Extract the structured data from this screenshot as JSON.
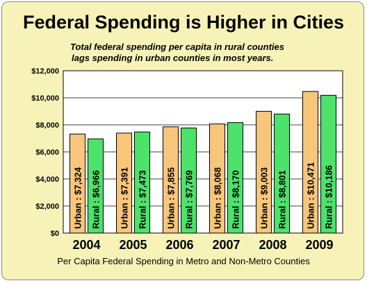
{
  "title": "Federal Spending is Higher in Cities",
  "subtitle_line1": "Total federal spending per capita in rural counties",
  "subtitle_line2": "lags spending in urban counties in most years.",
  "xlabel": "Per Capita Federal Spending in Metro and Non-Metro Counties",
  "colors": {
    "urban": "#f7c67a",
    "rural": "#4de26a",
    "background": "#f7f3b8",
    "plot": "#ffffff"
  },
  "chart_data": {
    "type": "bar",
    "title": "Federal Spending is Higher in Cities",
    "xlabel": "Per Capita Federal Spending in Metro and Non-Metro Counties",
    "ylabel": "",
    "ylim": [
      0,
      12000
    ],
    "yticks": [
      "$0",
      "$2,000",
      "$4,000",
      "$6,000",
      "$8,000",
      "$10,000",
      "$12,000"
    ],
    "ytick_values": [
      0,
      2000,
      4000,
      6000,
      8000,
      10000,
      12000
    ],
    "grid": true,
    "categories": [
      "2004",
      "2005",
      "2006",
      "2007",
      "2008",
      "2009"
    ],
    "series": [
      {
        "name": "Urban",
        "values": [
          7324,
          7391,
          7855,
          8068,
          9003,
          10471
        ],
        "labels": [
          "Urban : $7,324",
          "Urban : $7,391",
          "Urban : $7,855",
          "Urban : $8,068",
          "Urban : $9,003",
          "Urban : $10,471"
        ]
      },
      {
        "name": "Rural",
        "values": [
          6966,
          7473,
          7769,
          8170,
          8801,
          10186
        ],
        "labels": [
          "Rural : $6,966",
          "Rural : $7,473",
          "Rural : $7,769",
          "Rural : $8,170",
          "Rural : $8,801",
          "Rural : $10,186"
        ]
      }
    ]
  }
}
